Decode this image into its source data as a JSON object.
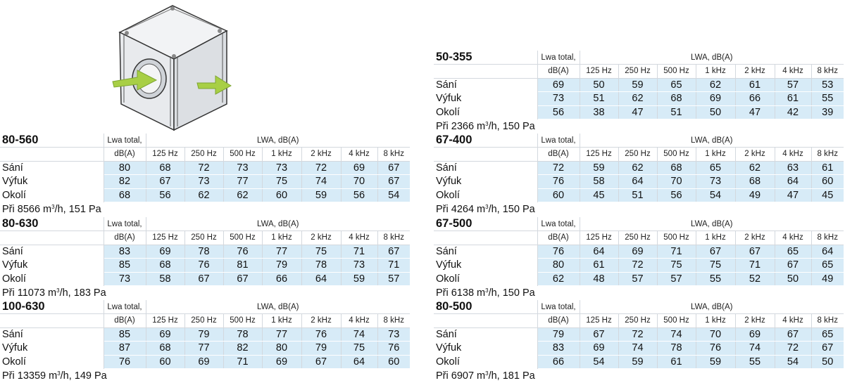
{
  "tables": [
    {
      "model": "80-560",
      "lwa_total_line1": "Lwa total,",
      "lwa_total_line2": "dB(A)",
      "lwa_group": "LWA, dB(A)",
      "bands": [
        "125 Hz",
        "250 Hz",
        "500 Hz",
        "1 kHz",
        "2 kHz",
        "4 kHz",
        "8 kHz"
      ],
      "rows": [
        {
          "label": "Sání",
          "total": "80",
          "values": [
            "68",
            "72",
            "73",
            "73",
            "72",
            "69",
            "67"
          ]
        },
        {
          "label": "Výfuk",
          "total": "82",
          "values": [
            "67",
            "73",
            "77",
            "75",
            "74",
            "70",
            "67"
          ]
        },
        {
          "label": "Okolí",
          "total": "68",
          "values": [
            "56",
            "62",
            "62",
            "60",
            "59",
            "56",
            "54"
          ]
        }
      ],
      "footer_prefix": "Při 8566 m",
      "footer_sup": "3",
      "footer_suffix": "/h, 151 Pa"
    },
    {
      "model": "80-630",
      "lwa_total_line1": "Lwa total,",
      "lwa_total_line2": "dB(A)",
      "lwa_group": "LWA, dB(A)",
      "bands": [
        "125 Hz",
        "250 Hz",
        "500 Hz",
        "1 kHz",
        "2 kHz",
        "4 kHz",
        "8 kHz"
      ],
      "rows": [
        {
          "label": "Sání",
          "total": "83",
          "values": [
            "69",
            "78",
            "76",
            "77",
            "75",
            "71",
            "67"
          ]
        },
        {
          "label": "Výfuk",
          "total": "85",
          "values": [
            "68",
            "76",
            "81",
            "79",
            "78",
            "73",
            "71"
          ]
        },
        {
          "label": "Okolí",
          "total": "73",
          "values": [
            "58",
            "67",
            "67",
            "66",
            "64",
            "59",
            "57"
          ]
        }
      ],
      "footer_prefix": "Při 11073 m",
      "footer_sup": "3",
      "footer_suffix": "/h, 183 Pa"
    },
    {
      "model": "100-630",
      "lwa_total_line1": "Lwa total,",
      "lwa_total_line2": "dB(A)",
      "lwa_group": "LWA, dB(A)",
      "bands": [
        "125 Hz",
        "250 Hz",
        "500 Hz",
        "1 kHz",
        "2 kHz",
        "4 kHz",
        "8 kHz"
      ],
      "rows": [
        {
          "label": "Sání",
          "total": "85",
          "values": [
            "69",
            "79",
            "78",
            "77",
            "76",
            "74",
            "73"
          ]
        },
        {
          "label": "Výfuk",
          "total": "87",
          "values": [
            "68",
            "77",
            "82",
            "80",
            "79",
            "75",
            "76"
          ]
        },
        {
          "label": "Okolí",
          "total": "76",
          "values": [
            "60",
            "69",
            "71",
            "69",
            "67",
            "64",
            "60"
          ]
        }
      ],
      "footer_prefix": "Při 13359 m",
      "footer_sup": "3",
      "footer_suffix": "/h, 149 Pa"
    },
    {
      "model": "50-355",
      "lwa_total_line1": "Lwa total,",
      "lwa_total_line2": "dB(A)",
      "lwa_group": "LWA, dB(A)",
      "bands": [
        "125 Hz",
        "250 Hz",
        "500 Hz",
        "1 kHz",
        "2 kHz",
        "4 kHz",
        "8 kHz"
      ],
      "rows": [
        {
          "label": "Sání",
          "total": "69",
          "values": [
            "50",
            "59",
            "65",
            "62",
            "61",
            "57",
            "53"
          ]
        },
        {
          "label": "Výfuk",
          "total": "73",
          "values": [
            "51",
            "62",
            "68",
            "69",
            "66",
            "61",
            "55"
          ]
        },
        {
          "label": "Okolí",
          "total": "56",
          "values": [
            "38",
            "47",
            "51",
            "50",
            "47",
            "42",
            "39"
          ]
        }
      ],
      "footer_prefix": "Při 2366 m",
      "footer_sup": "3",
      "footer_suffix": "/h, 150 Pa"
    },
    {
      "model": "67-400",
      "lwa_total_line1": "Lwa total,",
      "lwa_total_line2": "dB(A)",
      "lwa_group": "LWA, dB(A)",
      "bands": [
        "125 Hz",
        "250 Hz",
        "500 Hz",
        "1 kHz",
        "2 kHz",
        "4 kHz",
        "8 kHz"
      ],
      "rows": [
        {
          "label": "Sání",
          "total": "72",
          "values": [
            "59",
            "62",
            "68",
            "65",
            "62",
            "63",
            "61"
          ]
        },
        {
          "label": "Výfuk",
          "total": "76",
          "values": [
            "58",
            "64",
            "70",
            "73",
            "68",
            "64",
            "60"
          ]
        },
        {
          "label": "Okolí",
          "total": "60",
          "values": [
            "45",
            "51",
            "56",
            "54",
            "49",
            "47",
            "45"
          ]
        }
      ],
      "footer_prefix": "Při 4264 m",
      "footer_sup": "3",
      "footer_suffix": "/h, 150 Pa"
    },
    {
      "model": "67-500",
      "lwa_total_line1": "Lwa total,",
      "lwa_total_line2": "dB(A)",
      "lwa_group": "LWA, dB(A)",
      "bands": [
        "125 Hz",
        "250 Hz",
        "500 Hz",
        "1 kHz",
        "2 kHz",
        "4 kHz",
        "8 kHz"
      ],
      "rows": [
        {
          "label": "Sání",
          "total": "76",
          "values": [
            "64",
            "69",
            "71",
            "67",
            "67",
            "65",
            "64"
          ]
        },
        {
          "label": "Výfuk",
          "total": "80",
          "values": [
            "61",
            "72",
            "75",
            "75",
            "71",
            "67",
            "65"
          ]
        },
        {
          "label": "Okolí",
          "total": "62",
          "values": [
            "48",
            "57",
            "57",
            "55",
            "52",
            "50",
            "49"
          ]
        }
      ],
      "footer_prefix": "Při 6138 m",
      "footer_sup": "3",
      "footer_suffix": "/h, 150 Pa"
    },
    {
      "model": "80-500",
      "lwa_total_line1": "Lwa total,",
      "lwa_total_line2": "dB(A)",
      "lwa_group": "LWA, dB(A)",
      "bands": [
        "125 Hz",
        "250 Hz",
        "500 Hz",
        "1 kHz",
        "2 kHz",
        "4 kHz",
        "8 kHz"
      ],
      "rows": [
        {
          "label": "Sání",
          "total": "79",
          "values": [
            "67",
            "72",
            "74",
            "70",
            "69",
            "67",
            "65"
          ]
        },
        {
          "label": "Výfuk",
          "total": "83",
          "values": [
            "69",
            "74",
            "78",
            "76",
            "74",
            "72",
            "67"
          ]
        },
        {
          "label": "Okolí",
          "total": "66",
          "values": [
            "54",
            "59",
            "61",
            "59",
            "55",
            "54",
            "50"
          ]
        }
      ],
      "footer_prefix": "Při 6907 m",
      "footer_sup": "3",
      "footer_suffix": "/h, 181 Pa"
    }
  ],
  "illustration": {
    "icon": "fan-box-icon",
    "arrow_color": "#a8cf45",
    "box_color": "#e4e6e9",
    "row_highlight": "#d7ebf7"
  }
}
